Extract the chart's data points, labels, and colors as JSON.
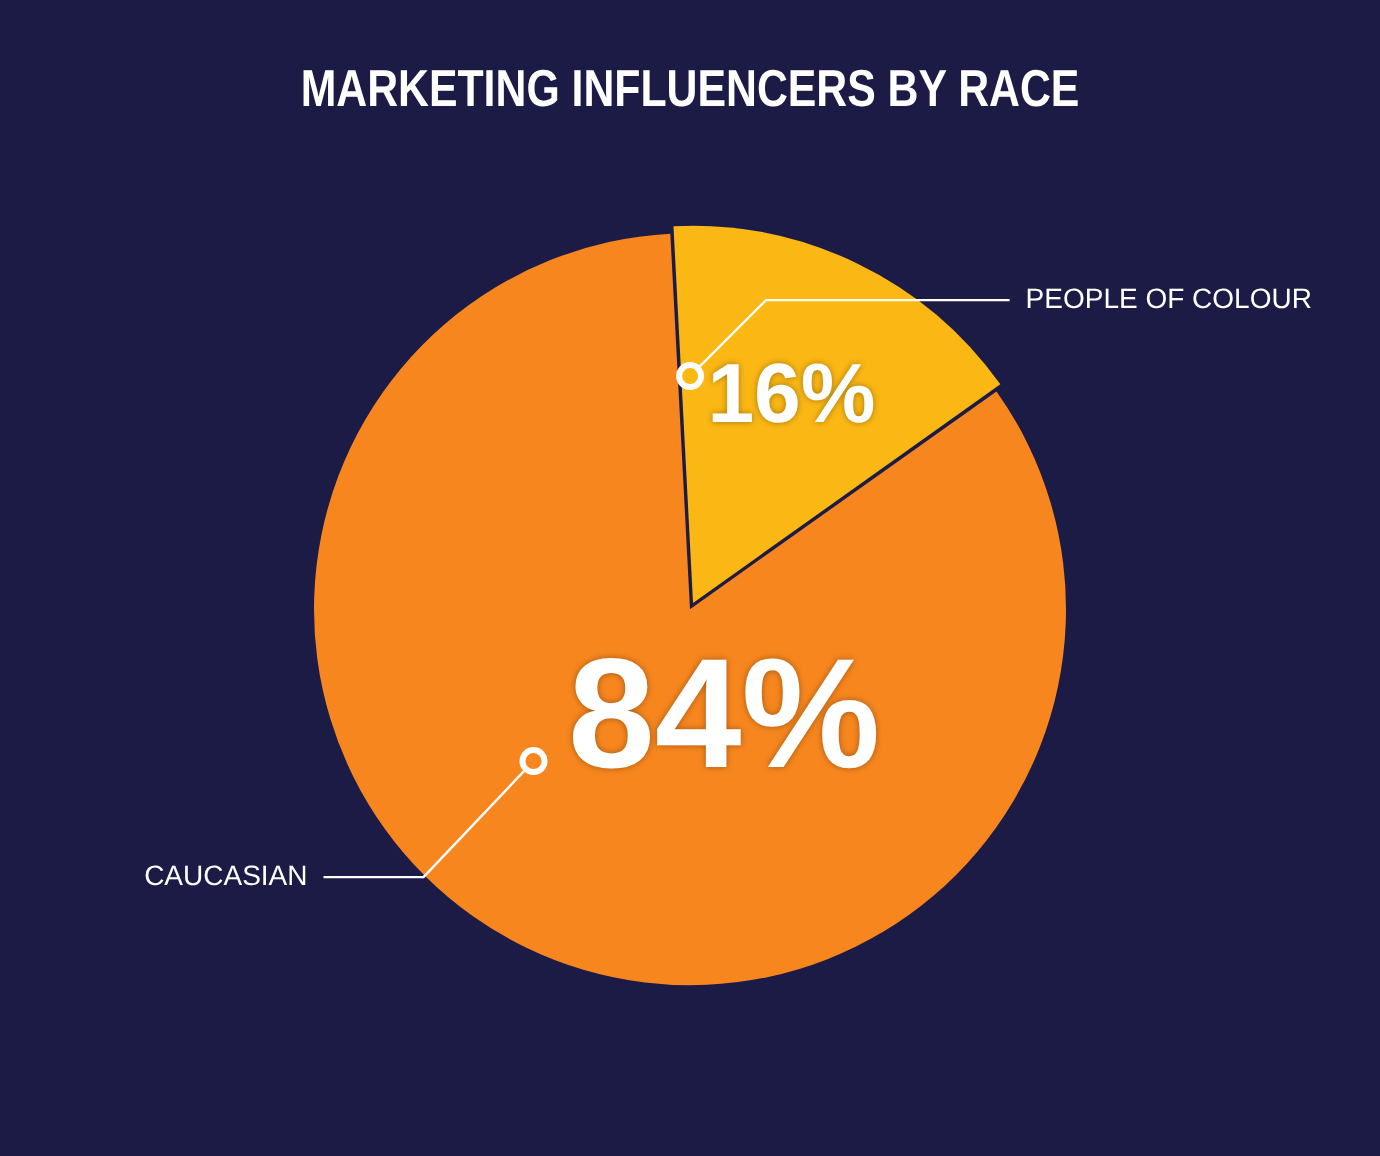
{
  "chart_data": {
    "type": "pie",
    "title": "MARKETING INFLUENCERS BY RACE",
    "categories": [
      "PEOPLE OF COLOUR",
      "CAUCASIAN"
    ],
    "values": [
      16,
      84
    ],
    "colors": [
      "#fbb714",
      "#f7861e"
    ],
    "value_labels": [
      "16%",
      "84%"
    ],
    "legend": false
  }
}
